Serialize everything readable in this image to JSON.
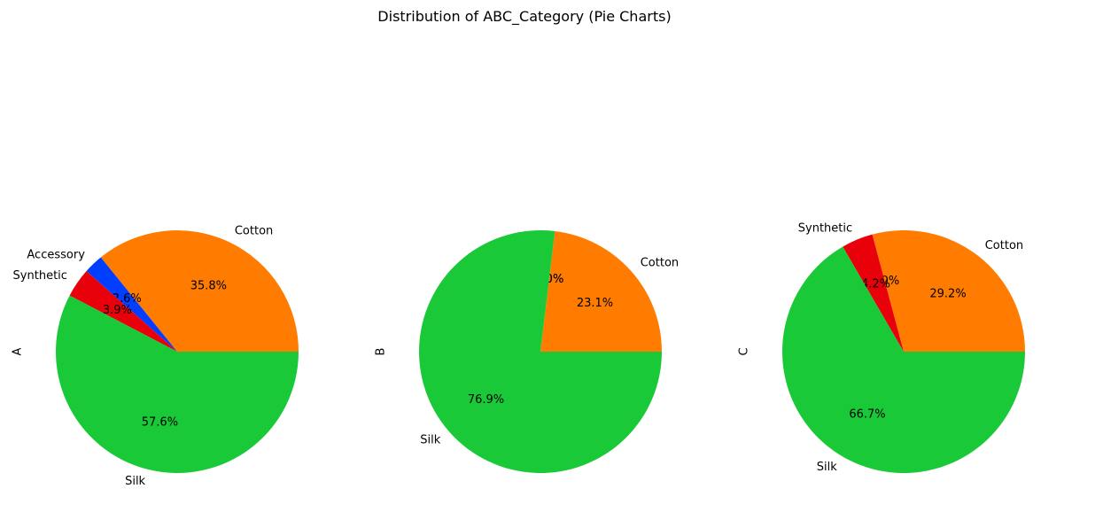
{
  "figure": {
    "title": "Distribution of ABC_Category (Pie Charts)"
  },
  "colors": {
    "Cotton": "#ff7c00",
    "Accessory": "#023eff",
    "Synthetic": "#e8000b",
    "Silk": "#1ac938"
  },
  "chart_data": [
    {
      "type": "pie",
      "ylabel": "A",
      "slices": [
        {
          "label": "Cotton",
          "value": 35.8,
          "pct_label": "35.8%",
          "show_label": true
        },
        {
          "label": "Accessory",
          "value": 2.6,
          "pct_label": "2.6%",
          "show_label": true
        },
        {
          "label": "Synthetic",
          "value": 3.9,
          "pct_label": "3.9%",
          "show_label": true
        },
        {
          "label": "Silk",
          "value": 57.6,
          "pct_label": "57.6%",
          "show_label": true
        }
      ]
    },
    {
      "type": "pie",
      "ylabel": "B",
      "slices": [
        {
          "label": "Cotton",
          "value": 23.1,
          "pct_label": "23.1%",
          "show_label": true
        },
        {
          "label": "Accessory",
          "value": 0.0,
          "pct_label": "0.0%",
          "show_label": false
        },
        {
          "label": "Synthetic",
          "value": 0.0,
          "pct_label": "0.0%",
          "show_label": false
        },
        {
          "label": "Silk",
          "value": 76.9,
          "pct_label": "76.9%",
          "show_label": true
        }
      ]
    },
    {
      "type": "pie",
      "ylabel": "C",
      "slices": [
        {
          "label": "Cotton",
          "value": 29.2,
          "pct_label": "29.2%",
          "show_label": true
        },
        {
          "label": "Accessory",
          "value": 0.0,
          "pct_label": "0.0%",
          "show_label": false
        },
        {
          "label": "Synthetic",
          "value": 4.2,
          "pct_label": "4.2%",
          "show_label": true
        },
        {
          "label": "Silk",
          "value": 66.7,
          "pct_label": "66.7%",
          "show_label": true
        }
      ]
    }
  ]
}
